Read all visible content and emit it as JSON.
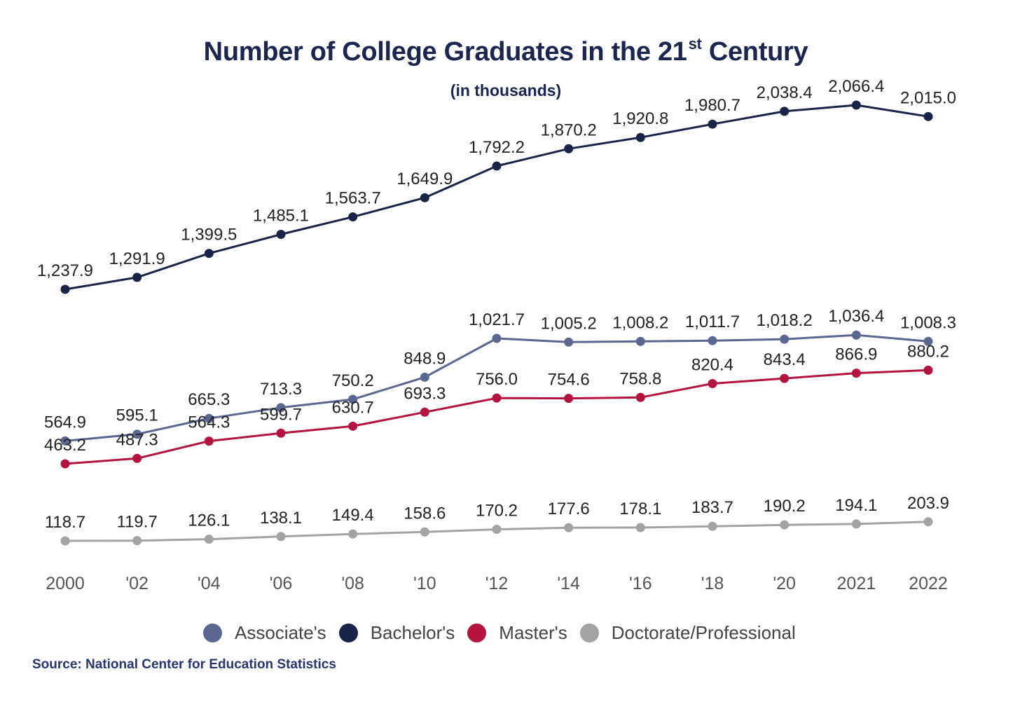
{
  "title_main": "Number of College Graduates in the 21",
  "title_sup": "st",
  "title_end": " Century",
  "subtitle": "(in thousands)",
  "source": "Source: National Center for Education Statistics",
  "colors": {
    "associates": "#5b6790",
    "bachelors": "#1a2348",
    "masters": "#b5133f",
    "doctorate": "#a3a3a3"
  },
  "chart_data": {
    "type": "line",
    "title": "Number of College Graduates in the 21st Century",
    "subtitle": "(in thousands)",
    "categories": [
      "2000",
      "'02",
      "'04",
      "'06",
      "'08",
      "'10",
      "'12",
      "'14",
      "'16",
      "'18",
      "'20",
      "2021",
      "2022"
    ],
    "x": [
      2000,
      2002,
      2004,
      2006,
      2008,
      2010,
      2012,
      2014,
      2016,
      2018,
      2020,
      2021,
      2022
    ],
    "legend_position": "bottom",
    "grid": false,
    "series": [
      {
        "name": "Associate's",
        "color": "#5b6790",
        "values": [
          564.9,
          595.1,
          665.3,
          713.3,
          750.2,
          848.9,
          1021.7,
          1005.2,
          1008.2,
          1011.7,
          1018.2,
          1036.4,
          1008.3
        ],
        "labels": [
          "564.9",
          "595.1",
          "665.3",
          "713.3",
          "750.2",
          "848.9",
          "1,021.7",
          "1,005.2",
          "1,008.2",
          "1,011.7",
          "1,018.2",
          "1,036.4",
          "1,008.3"
        ]
      },
      {
        "name": "Bachelor's",
        "color": "#1a2348",
        "values": [
          1237.9,
          1291.9,
          1399.5,
          1485.1,
          1563.7,
          1649.9,
          1792.2,
          1870.2,
          1920.8,
          1980.7,
          2038.4,
          2066.4,
          2015.0
        ],
        "labels": [
          "1,237.9",
          "1,291.9",
          "1,399.5",
          "1,485.1",
          "1,563.7",
          "1,649.9",
          "1,792.2",
          "1,870.2",
          "1,920.8",
          "1,980.7",
          "2,038.4",
          "2,066.4",
          "2,015.0"
        ]
      },
      {
        "name": "Master's",
        "color": "#b5133f",
        "values": [
          463.2,
          487.3,
          564.3,
          599.7,
          630.7,
          693.3,
          756.0,
          754.6,
          758.8,
          820.4,
          843.4,
          866.9,
          880.2
        ],
        "labels": [
          "463.2",
          "487.3",
          "564.3",
          "599.7",
          "630.7",
          "693.3",
          "756.0",
          "754.6",
          "758.8",
          "820.4",
          "843.4",
          "866.9",
          "880.2"
        ]
      },
      {
        "name": "Doctorate/Professional",
        "color": "#a3a3a3",
        "values": [
          118.7,
          119.7,
          126.1,
          138.1,
          149.4,
          158.6,
          170.2,
          177.6,
          178.1,
          183.7,
          190.2,
          194.1,
          203.9
        ],
        "labels": [
          "118.7",
          "119.7",
          "126.1",
          "138.1",
          "149.4",
          "158.6",
          "170.2",
          "177.6",
          "178.1",
          "183.7",
          "190.2",
          "194.1",
          "203.9"
        ]
      }
    ]
  }
}
